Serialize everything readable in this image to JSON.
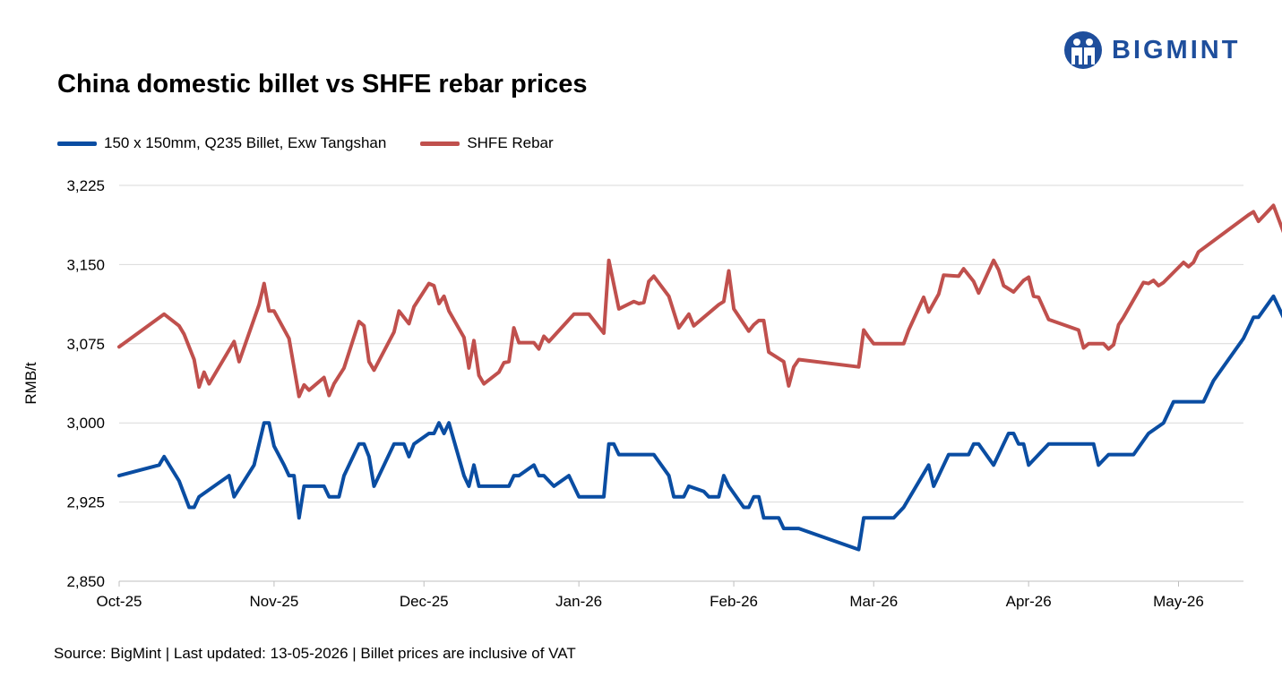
{
  "header": {
    "title": "China domestic billet vs SHFE rebar prices",
    "brand": "BIGMINT"
  },
  "footer": {
    "source": "Source: BigMint | Last updated: 13-05-2026 | Billet prices are inclusive of VAT"
  },
  "colors": {
    "billet": "#0a4da2",
    "rebar": "#c0504d",
    "grid": "#d9d9d9",
    "brand": "#1e4e9c"
  },
  "chart_data": {
    "type": "line",
    "title": "China domestic billet vs SHFE rebar prices",
    "ylabel": "RMB/t",
    "xlabel": "",
    "ylim": [
      2850,
      3225
    ],
    "yticks": [
      2850,
      2925,
      3000,
      3075,
      3150,
      3225
    ],
    "ytick_labels": [
      "2,850",
      "2,925",
      "3,000",
      "3,075",
      "3,150",
      "3,225"
    ],
    "xlim": [
      "2025-10-01",
      "2026-05-14"
    ],
    "xticks": [
      "2025-10-01",
      "2025-11-01",
      "2025-12-01",
      "2026-01-01",
      "2026-02-01",
      "2026-03-01",
      "2026-04-01",
      "2026-05-01"
    ],
    "xtick_labels": [
      "Oct-25",
      "Nov-25",
      "Dec-25",
      "Jan-26",
      "Feb-26",
      "Mar-26",
      "Apr-26",
      "May-26"
    ],
    "grid": true,
    "legend_position": "top-left",
    "series": [
      {
        "name": "150 x 150mm, Q235 Billet, Exw Tangshan",
        "color": "#0a4da2",
        "points": [
          [
            "2025-10-01",
            2950
          ],
          [
            "2025-10-09",
            2960
          ],
          [
            "2025-10-10",
            2968
          ],
          [
            "2025-10-13",
            2945
          ],
          [
            "2025-10-15",
            2920
          ],
          [
            "2025-10-16",
            2920
          ],
          [
            "2025-10-17",
            2930
          ],
          [
            "2025-10-23",
            2950
          ],
          [
            "2025-10-24",
            2930
          ],
          [
            "2025-10-28",
            2960
          ],
          [
            "2025-10-30",
            3000
          ],
          [
            "2025-10-31",
            3000
          ],
          [
            "2025-11-01",
            2978
          ],
          [
            "2025-11-03",
            2960
          ],
          [
            "2025-11-04",
            2950
          ],
          [
            "2025-11-05",
            2950
          ],
          [
            "2025-11-06",
            2910
          ],
          [
            "2025-11-07",
            2940
          ],
          [
            "2025-11-11",
            2940
          ],
          [
            "2025-11-12",
            2930
          ],
          [
            "2025-11-14",
            2930
          ],
          [
            "2025-11-15",
            2950
          ],
          [
            "2025-11-18",
            2980
          ],
          [
            "2025-11-19",
            2980
          ],
          [
            "2025-11-20",
            2968
          ],
          [
            "2025-11-21",
            2940
          ],
          [
            "2025-11-25",
            2980
          ],
          [
            "2025-11-27",
            2980
          ],
          [
            "2025-11-28",
            2968
          ],
          [
            "2025-11-29",
            2980
          ],
          [
            "2025-12-02",
            2990
          ],
          [
            "2025-12-03",
            2990
          ],
          [
            "2025-12-04",
            3000
          ],
          [
            "2025-12-05",
            2990
          ],
          [
            "2025-12-06",
            3000
          ],
          [
            "2025-12-09",
            2950
          ],
          [
            "2025-12-10",
            2940
          ],
          [
            "2025-12-11",
            2960
          ],
          [
            "2025-12-12",
            2940
          ],
          [
            "2025-12-16",
            2940
          ],
          [
            "2025-12-18",
            2940
          ],
          [
            "2025-12-19",
            2950
          ],
          [
            "2025-12-20",
            2950
          ],
          [
            "2025-12-23",
            2960
          ],
          [
            "2025-12-24",
            2950
          ],
          [
            "2025-12-25",
            2950
          ],
          [
            "2025-12-27",
            2940
          ],
          [
            "2025-12-30",
            2950
          ],
          [
            "2026-01-01",
            2930
          ],
          [
            "2026-01-06",
            2930
          ],
          [
            "2026-01-07",
            2980
          ],
          [
            "2026-01-08",
            2980
          ],
          [
            "2026-01-09",
            2970
          ],
          [
            "2026-01-13",
            2970
          ],
          [
            "2026-01-16",
            2970
          ],
          [
            "2026-01-19",
            2950
          ],
          [
            "2026-01-20",
            2930
          ],
          [
            "2026-01-22",
            2930
          ],
          [
            "2026-01-23",
            2940
          ],
          [
            "2026-01-26",
            2935
          ],
          [
            "2026-01-27",
            2930
          ],
          [
            "2026-01-29",
            2930
          ],
          [
            "2026-01-30",
            2950
          ],
          [
            "2026-01-31",
            2940
          ],
          [
            "2026-02-03",
            2920
          ],
          [
            "2026-02-04",
            2920
          ],
          [
            "2026-02-05",
            2930
          ],
          [
            "2026-02-06",
            2930
          ],
          [
            "2026-02-07",
            2910
          ],
          [
            "2026-02-10",
            2910
          ],
          [
            "2026-02-11",
            2900
          ],
          [
            "2026-02-14",
            2900
          ],
          [
            "2026-02-26",
            2880
          ],
          [
            "2026-02-27",
            2910
          ],
          [
            "2026-03-05",
            2910
          ],
          [
            "2026-03-07",
            2920
          ],
          [
            "2026-03-12",
            2960
          ],
          [
            "2026-03-13",
            2940
          ],
          [
            "2026-03-14",
            2950
          ],
          [
            "2026-03-16",
            2970
          ],
          [
            "2026-03-20",
            2970
          ],
          [
            "2026-03-21",
            2980
          ],
          [
            "2026-03-22",
            2980
          ],
          [
            "2026-03-25",
            2960
          ],
          [
            "2026-03-28",
            2990
          ],
          [
            "2026-03-29",
            2990
          ],
          [
            "2026-03-30",
            2980
          ],
          [
            "2026-03-31",
            2980
          ],
          [
            "2026-04-01",
            2960
          ],
          [
            "2026-04-05",
            2980
          ],
          [
            "2026-04-14",
            2980
          ],
          [
            "2026-04-15",
            2960
          ],
          [
            "2026-04-17",
            2970
          ],
          [
            "2026-04-22",
            2970
          ],
          [
            "2026-04-25",
            2990
          ],
          [
            "2026-04-28",
            3000
          ],
          [
            "2026-04-30",
            3020
          ],
          [
            "2026-05-06",
            3020
          ],
          [
            "2026-05-08",
            3040
          ],
          [
            "2026-05-14",
            3080
          ],
          [
            "2026-05-16",
            3100
          ],
          [
            "2026-05-17",
            3100
          ],
          [
            "2026-05-20",
            3120
          ],
          [
            "2026-05-22",
            3100
          ],
          [
            "2026-05-23",
            3100
          ]
        ]
      },
      {
        "name": "SHFE Rebar",
        "color": "#c0504d",
        "points": [
          [
            "2025-10-01",
            3072
          ],
          [
            "2025-10-10",
            3103
          ],
          [
            "2025-10-13",
            3092
          ],
          [
            "2025-10-14",
            3084
          ],
          [
            "2025-10-16",
            3060
          ],
          [
            "2025-10-17",
            3034
          ],
          [
            "2025-10-18",
            3048
          ],
          [
            "2025-10-19",
            3037
          ],
          [
            "2025-10-24",
            3077
          ],
          [
            "2025-10-25",
            3058
          ],
          [
            "2025-10-29",
            3112
          ],
          [
            "2025-10-30",
            3132
          ],
          [
            "2025-10-31",
            3106
          ],
          [
            "2025-11-01",
            3106
          ],
          [
            "2025-11-04",
            3080
          ],
          [
            "2025-11-06",
            3025
          ],
          [
            "2025-11-07",
            3036
          ],
          [
            "2025-11-08",
            3031
          ],
          [
            "2025-11-11",
            3043
          ],
          [
            "2025-11-12",
            3026
          ],
          [
            "2025-11-13",
            3037
          ],
          [
            "2025-11-15",
            3052
          ],
          [
            "2025-11-18",
            3096
          ],
          [
            "2025-11-19",
            3092
          ],
          [
            "2025-11-20",
            3058
          ],
          [
            "2025-11-21",
            3050
          ],
          [
            "2025-11-25",
            3086
          ],
          [
            "2025-11-26",
            3106
          ],
          [
            "2025-11-28",
            3094
          ],
          [
            "2025-11-29",
            3110
          ],
          [
            "2025-12-02",
            3132
          ],
          [
            "2025-12-03",
            3130
          ],
          [
            "2025-12-04",
            3113
          ],
          [
            "2025-12-05",
            3120
          ],
          [
            "2025-12-06",
            3106
          ],
          [
            "2025-12-09",
            3081
          ],
          [
            "2025-12-10",
            3052
          ],
          [
            "2025-12-11",
            3078
          ],
          [
            "2025-12-12",
            3045
          ],
          [
            "2025-12-13",
            3037
          ],
          [
            "2025-12-16",
            3048
          ],
          [
            "2025-12-17",
            3057
          ],
          [
            "2025-12-18",
            3058
          ],
          [
            "2025-12-19",
            3090
          ],
          [
            "2025-12-20",
            3076
          ],
          [
            "2025-12-23",
            3076
          ],
          [
            "2025-12-24",
            3070
          ],
          [
            "2025-12-25",
            3082
          ],
          [
            "2025-12-26",
            3077
          ],
          [
            "2025-12-31",
            3103
          ],
          [
            "2026-01-01",
            3103
          ],
          [
            "2026-01-03",
            3103
          ],
          [
            "2026-01-06",
            3085
          ],
          [
            "2026-01-07",
            3154
          ],
          [
            "2026-01-09",
            3108
          ],
          [
            "2026-01-12",
            3115
          ],
          [
            "2026-01-13",
            3113
          ],
          [
            "2026-01-14",
            3114
          ],
          [
            "2026-01-15",
            3134
          ],
          [
            "2026-01-16",
            3139
          ],
          [
            "2026-01-19",
            3120
          ],
          [
            "2026-01-21",
            3090
          ],
          [
            "2026-01-23",
            3103
          ],
          [
            "2026-01-24",
            3092
          ],
          [
            "2026-01-29",
            3112
          ],
          [
            "2026-01-30",
            3115
          ],
          [
            "2026-01-31",
            3144
          ],
          [
            "2026-02-01",
            3108
          ],
          [
            "2026-02-04",
            3087
          ],
          [
            "2026-02-05",
            3093
          ],
          [
            "2026-02-06",
            3097
          ],
          [
            "2026-02-07",
            3097
          ],
          [
            "2026-02-08",
            3067
          ],
          [
            "2026-02-11",
            3058
          ],
          [
            "2026-02-12",
            3035
          ],
          [
            "2026-02-13",
            3053
          ],
          [
            "2026-02-14",
            3060
          ],
          [
            "2026-02-26",
            3053
          ],
          [
            "2026-02-27",
            3088
          ],
          [
            "2026-02-28",
            3081
          ],
          [
            "2026-03-01",
            3075
          ],
          [
            "2026-03-07",
            3075
          ],
          [
            "2026-03-08",
            3088
          ],
          [
            "2026-03-11",
            3119
          ],
          [
            "2026-03-12",
            3105
          ],
          [
            "2026-03-14",
            3122
          ],
          [
            "2026-03-15",
            3140
          ],
          [
            "2026-03-18",
            3139
          ],
          [
            "2026-03-19",
            3146
          ],
          [
            "2026-03-21",
            3134
          ],
          [
            "2026-03-22",
            3123
          ],
          [
            "2026-03-25",
            3154
          ],
          [
            "2026-03-26",
            3145
          ],
          [
            "2026-03-27",
            3130
          ],
          [
            "2026-03-29",
            3124
          ],
          [
            "2026-03-31",
            3135
          ],
          [
            "2026-04-01",
            3138
          ],
          [
            "2026-04-02",
            3120
          ],
          [
            "2026-04-03",
            3119
          ],
          [
            "2026-04-05",
            3098
          ],
          [
            "2026-04-11",
            3088
          ],
          [
            "2026-04-12",
            3071
          ],
          [
            "2026-04-13",
            3075
          ],
          [
            "2026-04-16",
            3075
          ],
          [
            "2026-04-17",
            3070
          ],
          [
            "2026-04-18",
            3074
          ],
          [
            "2026-04-19",
            3093
          ],
          [
            "2026-04-20",
            3100
          ],
          [
            "2026-04-24",
            3133
          ],
          [
            "2026-04-25",
            3132
          ],
          [
            "2026-04-26",
            3135
          ],
          [
            "2026-04-27",
            3130
          ],
          [
            "2026-04-28",
            3133
          ],
          [
            "2026-05-02",
            3152
          ],
          [
            "2026-05-03",
            3148
          ],
          [
            "2026-05-04",
            3152
          ],
          [
            "2026-05-05",
            3162
          ],
          [
            "2026-05-15",
            3197
          ],
          [
            "2026-05-16",
            3200
          ],
          [
            "2026-05-17",
            3191
          ],
          [
            "2026-05-20",
            3206
          ],
          [
            "2026-05-22",
            3181
          ],
          [
            "2026-05-23",
            3183
          ]
        ]
      }
    ]
  }
}
